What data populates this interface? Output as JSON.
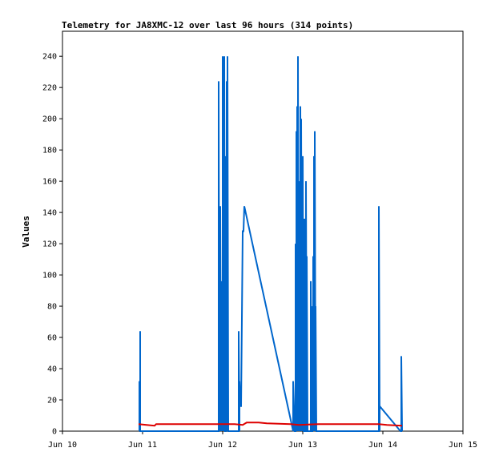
{
  "chart_data": {
    "type": "line",
    "title": "Telemetry for JA8XMC-12 over last 96 hours (314 points)",
    "xlabel": "",
    "ylabel": "Values",
    "xlim": [
      0,
      5
    ],
    "ylim": [
      0,
      256
    ],
    "x_tick_labels": [
      "Jun 10",
      "Jun 11",
      "Jun 12",
      "Jun 13",
      "Jun 14",
      "Jun 15"
    ],
    "y_ticks": [
      0,
      20,
      40,
      60,
      80,
      100,
      120,
      140,
      160,
      180,
      200,
      220,
      240
    ],
    "grid": false,
    "legend": "none",
    "series": [
      {
        "color": "#0066cc",
        "points": [
          [
            0.96,
            0
          ],
          [
            0.96,
            32
          ],
          [
            0.97,
            0
          ],
          [
            0.97,
            64
          ],
          [
            0.97,
            0
          ],
          [
            1.95,
            0
          ],
          [
            1.95,
            224
          ],
          [
            1.96,
            0
          ],
          [
            1.96,
            80
          ],
          [
            1.97,
            0
          ],
          [
            1.97,
            144
          ],
          [
            1.98,
            0
          ],
          [
            1.98,
            96
          ],
          [
            1.99,
            0
          ],
          [
            1.99,
            56
          ],
          [
            2.0,
            0
          ],
          [
            2.0,
            240
          ],
          [
            2.01,
            0
          ],
          [
            2.01,
            200
          ],
          [
            2.02,
            0
          ],
          [
            2.02,
            240
          ],
          [
            2.03,
            0
          ],
          [
            2.04,
            0
          ],
          [
            2.04,
            176
          ],
          [
            2.05,
            0
          ],
          [
            2.05,
            224
          ],
          [
            2.06,
            0
          ],
          [
            2.06,
            240
          ],
          [
            2.07,
            0
          ],
          [
            2.2,
            0
          ],
          [
            2.2,
            64
          ],
          [
            2.21,
            0
          ],
          [
            2.21,
            32
          ],
          [
            2.22,
            16
          ],
          [
            2.23,
            16
          ],
          [
            2.24,
            72
          ],
          [
            2.25,
            128
          ],
          [
            2.26,
            128
          ],
          [
            2.27,
            144
          ],
          [
            2.88,
            0
          ],
          [
            2.88,
            32
          ],
          [
            2.9,
            0
          ],
          [
            2.91,
            0
          ],
          [
            2.91,
            120
          ],
          [
            2.92,
            0
          ],
          [
            2.92,
            192
          ],
          [
            2.93,
            0
          ],
          [
            2.93,
            208
          ],
          [
            2.94,
            0
          ],
          [
            2.94,
            240
          ],
          [
            2.95,
            0
          ],
          [
            2.95,
            160
          ],
          [
            2.96,
            0
          ],
          [
            2.96,
            128
          ],
          [
            2.97,
            0
          ],
          [
            2.97,
            208
          ],
          [
            2.98,
            0
          ],
          [
            2.98,
            200
          ],
          [
            2.99,
            0
          ],
          [
            2.99,
            176
          ],
          [
            3.0,
            0
          ],
          [
            3.0,
            176
          ],
          [
            3.01,
            0
          ],
          [
            3.02,
            0
          ],
          [
            3.02,
            136
          ],
          [
            3.03,
            0
          ],
          [
            3.04,
            0
          ],
          [
            3.04,
            160
          ],
          [
            3.05,
            0
          ],
          [
            3.05,
            112
          ],
          [
            3.06,
            0
          ],
          [
            3.1,
            0
          ],
          [
            3.1,
            96
          ],
          [
            3.11,
            0
          ],
          [
            3.12,
            0
          ],
          [
            3.12,
            80
          ],
          [
            3.13,
            0
          ],
          [
            3.13,
            112
          ],
          [
            3.14,
            0
          ],
          [
            3.14,
            176
          ],
          [
            3.15,
            0
          ],
          [
            3.15,
            192
          ],
          [
            3.16,
            0
          ],
          [
            3.16,
            80
          ],
          [
            3.17,
            0
          ],
          [
            3.18,
            0
          ],
          [
            3.95,
            0
          ],
          [
            3.95,
            144
          ],
          [
            3.96,
            0
          ],
          [
            3.96,
            16
          ],
          [
            4.22,
            0
          ],
          [
            4.23,
            0
          ],
          [
            4.23,
            48
          ],
          [
            4.24,
            0
          ]
        ]
      },
      {
        "color": "#dd0000",
        "points": [
          [
            0.95,
            4.5
          ],
          [
            1.05,
            4
          ],
          [
            1.15,
            3.5
          ],
          [
            1.17,
            4.5
          ],
          [
            1.9,
            4.5
          ],
          [
            2.15,
            4.5
          ],
          [
            2.25,
            4
          ],
          [
            2.3,
            5.5
          ],
          [
            2.45,
            5.5
          ],
          [
            2.55,
            5
          ],
          [
            2.85,
            4.5
          ],
          [
            2.95,
            4
          ],
          [
            3.2,
            4.5
          ],
          [
            3.95,
            4.5
          ],
          [
            4.05,
            4
          ],
          [
            4.24,
            3.5
          ]
        ]
      }
    ]
  }
}
